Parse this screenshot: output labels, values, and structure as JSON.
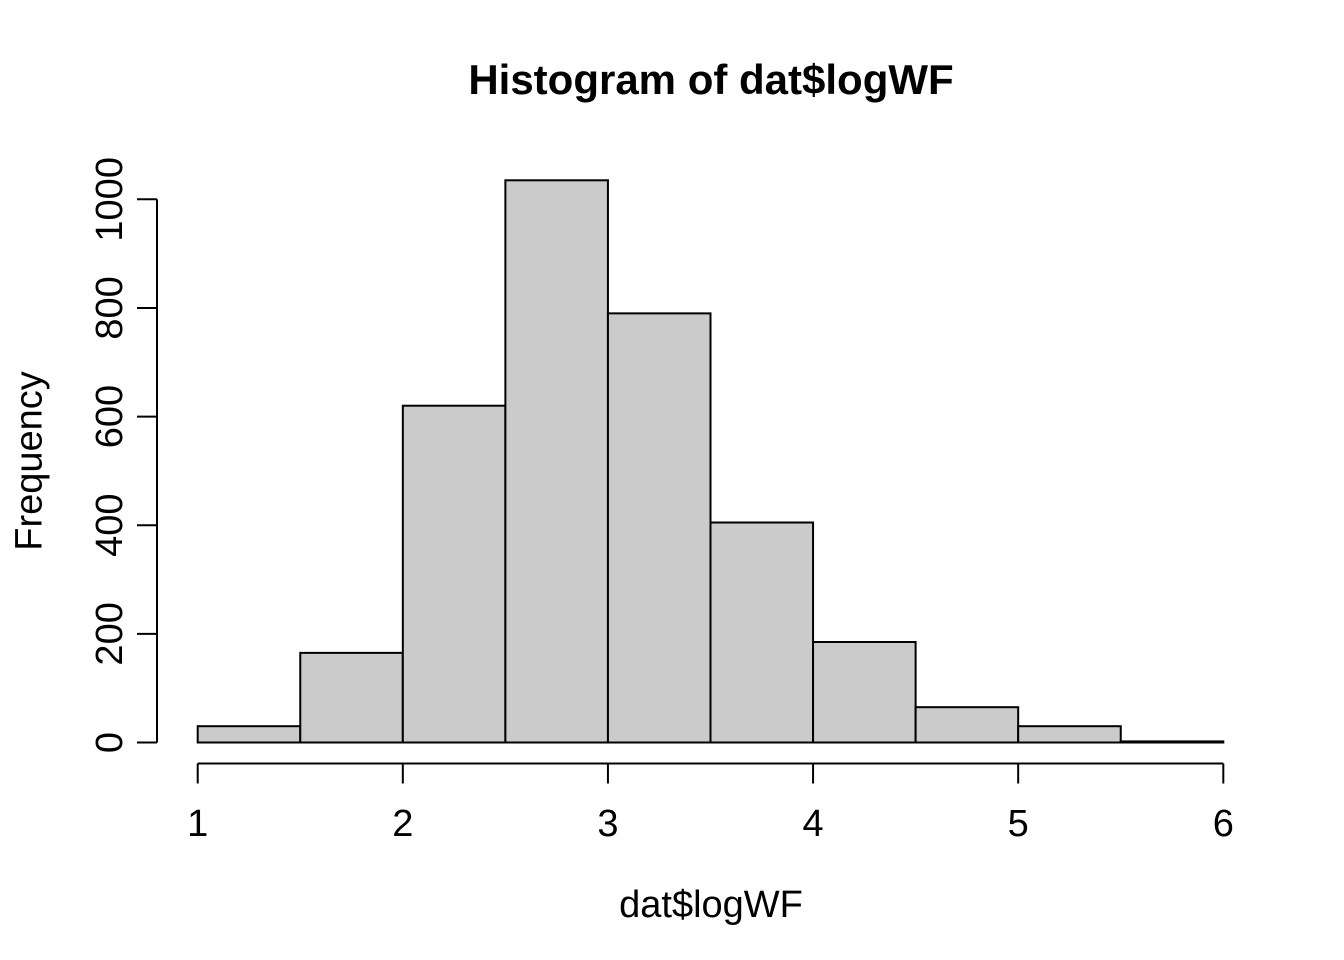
{
  "chart_data": {
    "type": "bar",
    "subtype": "histogram",
    "title": "Histogram of dat$logWF",
    "xlabel": "dat$logWF",
    "ylabel": "Frequency",
    "breaks": [
      1.0,
      1.5,
      2.0,
      2.5,
      3.0,
      3.5,
      4.0,
      4.5,
      5.0,
      5.5,
      6.0
    ],
    "counts": [
      30,
      165,
      620,
      1035,
      790,
      405,
      185,
      65,
      30,
      2
    ],
    "x_ticks": [
      1,
      2,
      3,
      4,
      5,
      6
    ],
    "y_ticks": [
      0,
      200,
      400,
      600,
      800,
      1000
    ],
    "xlim": [
      1,
      6
    ],
    "ylim": [
      0,
      1000
    ],
    "grid": "off",
    "legend": "none",
    "colors": {
      "bar_fill": "#CBCBCB",
      "bar_stroke": "#000000",
      "axis": "#000000",
      "text": "#000000",
      "background": "#FFFFFF"
    }
  }
}
